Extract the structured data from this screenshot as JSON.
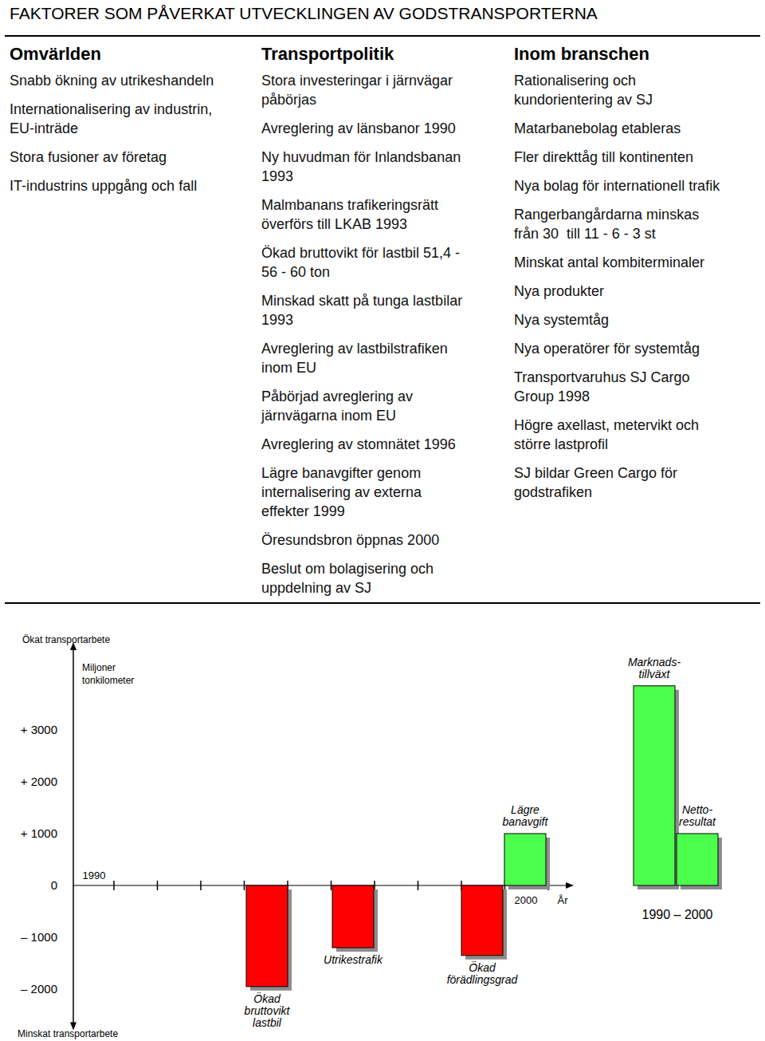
{
  "title": "FAKTORER SOM PÅVERKAT UTVECKLINGEN AV GODSTRANSPORTERNA",
  "columns": [
    {
      "header": "Omvärlden",
      "items": [
        "Snabb ökning av utrikeshandeln",
        "Internationalisering av industrin,\nEU-inträde",
        "Stora fusioner av företag",
        "IT-industrins uppgång och fall"
      ]
    },
    {
      "header": "Transportpolitik",
      "items": [
        "Stora investeringar i järnvägar\npåbörjas",
        "Avreglering av länsbanor 1990",
        "Ny huvudman för Inlandsbanan\n1993",
        "Malmbanans trafikeringsrätt\növerförs till LKAB 1993",
        "Ökad bruttovikt för lastbil 51,4 -\n56 - 60 ton",
        "Minskad skatt på tunga lastbilar\n1993",
        "Avreglering av lastbilstrafiken\ninom EU",
        "Påbörjad avreglering av\njärnvägarna inom EU",
        "Avreglering av stomnätet 1996",
        "Lägre banavgifter genom\ninternalisering av externa\neffekter 1999",
        "Öresundsbron öppnas 2000",
        "Beslut om bolagisering och\nuppdelning av SJ"
      ]
    },
    {
      "header": "Inom branschen",
      "items": [
        "Rationalisering och\nkundorientering av SJ",
        "Matarbanebolag etableras",
        "Fler direkttåg till kontinenten",
        "Nya bolag för internationell trafik",
        "Rangerbangårdarna minskas\nfrån 30  till 11 - 6 - 3 st",
        "Minskat antal kombiterminaler",
        "Nya produkter",
        "Nya systemtåg",
        "Nya operatörer för systemtåg",
        "Transportvaruhus SJ Cargo\nGroup 1998",
        "Högre axellast, metervikt och\nstörre lastprofil",
        "SJ bildar Green Cargo för\ngodstrafiken"
      ]
    }
  ],
  "chart_data": {
    "type": "bar",
    "ylabel": "Miljoner\ntonkilometer",
    "annotations": [
      "Ökat transportarbete",
      "Minskat transportarbete",
      "1990",
      "2000",
      "År",
      "1990 – 2000"
    ],
    "categories": [
      null,
      null,
      null,
      null,
      "Ökad\nbruttovikt\nlastbil",
      null,
      "Utrikestrafik",
      null,
      null,
      "Ökad\nförädlingsgrad",
      "Lägre\nbanavgift",
      null,
      null,
      "Marknads-\ntillväxt",
      "Netto-\nresultat",
      null
    ],
    "values": [
      null,
      null,
      null,
      null,
      -1950,
      null,
      -1200,
      null,
      null,
      -1350,
      1000,
      null,
      null,
      3850,
      1000,
      null
    ],
    "colors": [
      null,
      null,
      null,
      null,
      "#ff0000",
      null,
      "#ff0000",
      null,
      null,
      "#ff0000",
      "#4dff4d",
      null,
      null,
      "#4dff4d",
      "#4dff4d",
      null
    ],
    "ylim": [
      -2700,
      4600
    ],
    "yticks": [
      {
        "value": -2000,
        "label": "– 2000"
      },
      {
        "value": -1000,
        "label": "– 1000"
      },
      0,
      {
        "value": 1000,
        "label": "+ 1000"
      },
      {
        "value": 2000,
        "label": "+ 2000"
      },
      {
        "value": 3000,
        "label": "+ 3000"
      }
    ],
    "grid": false
  }
}
